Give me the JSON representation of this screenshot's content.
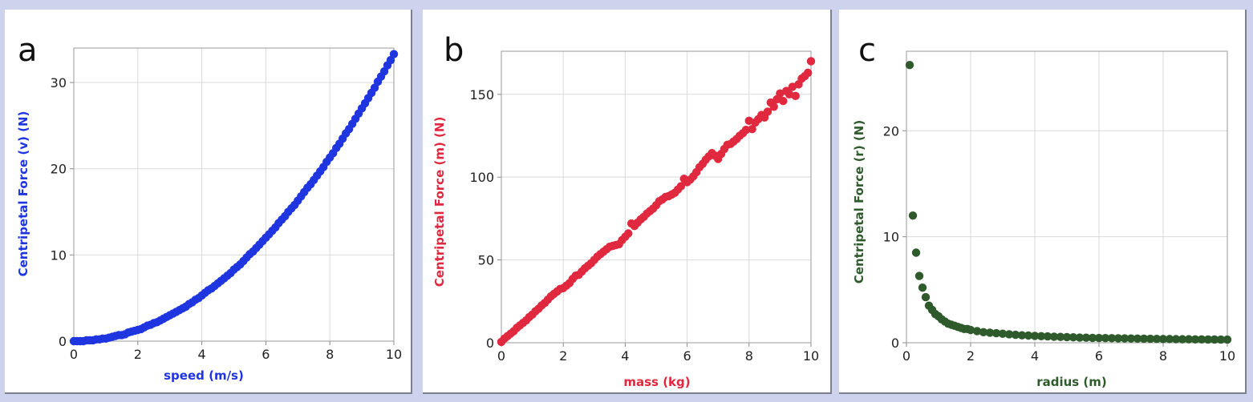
{
  "colors": {
    "background": "#cdd3ec",
    "panel": "#ffffff",
    "grid": "#d9d9d9"
  },
  "chart_data": [
    {
      "type": "scatter",
      "panel_label": "a",
      "xlabel": "speed (m/s)",
      "ylabel": "Centripetal Force (v) (N)",
      "xlim": [
        0,
        10
      ],
      "ylim": [
        0,
        34
      ],
      "xticks": [
        "0",
        "2",
        "4",
        "6",
        "8",
        "10"
      ],
      "yticks": [
        "0",
        "10",
        "20",
        "30"
      ],
      "color": "#1f35e0",
      "series": [
        {
          "x": [
            0.0,
            0.1,
            0.2,
            0.3,
            0.4,
            0.5,
            0.6,
            0.7,
            0.8,
            0.9,
            1.0,
            1.1,
            1.2,
            1.3,
            1.4,
            1.5,
            1.6,
            1.7,
            1.8,
            1.9,
            2.0,
            2.1,
            2.2,
            2.3,
            2.4,
            2.5,
            2.6,
            2.7,
            2.8,
            2.9,
            3.0,
            3.1,
            3.2,
            3.3,
            3.4,
            3.5,
            3.6,
            3.7,
            3.8,
            3.9,
            4.0,
            4.1,
            4.2,
            4.3,
            4.4,
            4.5,
            4.6,
            4.7,
            4.8,
            4.9,
            5.0,
            5.1,
            5.2,
            5.3,
            5.4,
            5.5,
            5.6,
            5.7,
            5.8,
            5.9,
            6.0,
            6.1,
            6.2,
            6.3,
            6.4,
            6.5,
            6.6,
            6.7,
            6.8,
            6.9,
            7.0,
            7.1,
            7.2,
            7.3,
            7.4,
            7.5,
            7.6,
            7.7,
            7.8,
            7.9,
            8.0,
            8.1,
            8.2,
            8.3,
            8.4,
            8.5,
            8.6,
            8.7,
            8.8,
            8.9,
            9.0,
            9.1,
            9.2,
            9.3,
            9.4,
            9.5,
            9.6,
            9.7,
            9.8,
            9.9,
            10.0
          ],
          "y": [
            0.0,
            0.0,
            0.0,
            0.0,
            0.1,
            0.1,
            0.1,
            0.2,
            0.2,
            0.3,
            0.3,
            0.4,
            0.5,
            0.6,
            0.7,
            0.7,
            0.8,
            1.0,
            1.1,
            1.2,
            1.3,
            1.4,
            1.6,
            1.8,
            1.9,
            2.1,
            2.2,
            2.4,
            2.6,
            2.8,
            3.0,
            3.2,
            3.4,
            3.6,
            3.8,
            4.0,
            4.3,
            4.5,
            4.8,
            5.0,
            5.3,
            5.6,
            5.9,
            6.1,
            6.4,
            6.7,
            7.0,
            7.3,
            7.6,
            7.9,
            8.3,
            8.6,
            8.9,
            9.3,
            9.7,
            10.1,
            10.4,
            10.8,
            11.2,
            11.6,
            12.0,
            12.4,
            12.8,
            13.2,
            13.7,
            14.1,
            14.5,
            15.0,
            15.4,
            15.8,
            16.3,
            16.8,
            17.3,
            17.8,
            18.2,
            18.7,
            19.2,
            19.7,
            20.2,
            20.8,
            21.3,
            21.8,
            22.4,
            22.9,
            23.5,
            24.1,
            24.6,
            25.2,
            25.8,
            26.4,
            27.0,
            27.6,
            28.2,
            28.8,
            29.4,
            30.1,
            30.7,
            31.3,
            32.0,
            32.6,
            33.3
          ]
        }
      ]
    },
    {
      "type": "scatter",
      "panel_label": "b",
      "xlabel": "mass (kg)",
      "ylabel": "Centripetal Force (m) (N)",
      "xlim": [
        0,
        10
      ],
      "ylim": [
        0,
        176
      ],
      "xticks": [
        "0",
        "2",
        "4",
        "6",
        "8",
        "10"
      ],
      "yticks": [
        "0",
        "50",
        "100",
        "150"
      ],
      "color": "#e0283f",
      "series": [
        {
          "x": [
            0.0,
            0.1,
            0.2,
            0.3,
            0.4,
            0.5,
            0.6,
            0.7,
            0.8,
            0.9,
            1.0,
            1.1,
            1.2,
            1.3,
            1.4,
            1.5,
            1.6,
            1.7,
            1.8,
            1.9,
            2.0,
            2.1,
            2.2,
            2.3,
            2.4,
            2.5,
            2.6,
            2.7,
            2.8,
            2.9,
            3.0,
            3.1,
            3.2,
            3.3,
            3.4,
            3.5,
            3.6,
            3.7,
            3.8,
            3.9,
            4.0,
            4.1,
            4.2,
            4.3,
            4.4,
            4.5,
            4.6,
            4.7,
            4.8,
            4.9,
            5.0,
            5.1,
            5.2,
            5.3,
            5.4,
            5.5,
            5.6,
            5.7,
            5.8,
            5.9,
            6.0,
            6.1,
            6.2,
            6.3,
            6.4,
            6.5,
            6.6,
            6.7,
            6.8,
            6.9,
            7.0,
            7.1,
            7.2,
            7.3,
            7.4,
            7.5,
            7.6,
            7.7,
            7.8,
            7.9,
            8.0,
            8.1,
            8.2,
            8.3,
            8.4,
            8.5,
            8.6,
            8.7,
            8.8,
            8.9,
            9.0,
            9.1,
            9.2,
            9.3,
            9.4,
            9.5,
            9.6,
            9.7,
            9.8,
            9.9,
            10.0
          ],
          "y": [
            0.5,
            2.5,
            4.0,
            5.5,
            7.0,
            9.0,
            10.5,
            12.0,
            13.5,
            15.5,
            17.0,
            19.0,
            20.5,
            22.5,
            24.0,
            26.0,
            28.0,
            29.5,
            31.0,
            32.5,
            33.0,
            34.5,
            36.0,
            38.5,
            40.5,
            41.0,
            43.0,
            45.0,
            46.5,
            48.0,
            50.0,
            52.0,
            53.5,
            55.0,
            56.5,
            58.0,
            58.5,
            59.0,
            59.5,
            62.0,
            64.0,
            66.0,
            72.0,
            70.5,
            72.5,
            74.5,
            76.0,
            78.0,
            79.5,
            81.0,
            83.0,
            85.5,
            86.5,
            88.0,
            88.5,
            89.5,
            90.5,
            92.5,
            94.5,
            99.0,
            97.0,
            98.5,
            100.5,
            103.0,
            106.0,
            108.0,
            110.5,
            112.5,
            114.5,
            113.0,
            111.0,
            114.0,
            117.0,
            119.5,
            120.0,
            121.5,
            123.0,
            125.0,
            126.5,
            128.5,
            134.0,
            129.0,
            133.0,
            135.0,
            137.5,
            136.0,
            139.5,
            145.0,
            142.5,
            147.0,
            150.5,
            146.0,
            152.0,
            150.0,
            154.5,
            149.0,
            156.0,
            159.5,
            161.0,
            163.0,
            170.0
          ]
        }
      ]
    },
    {
      "type": "scatter",
      "panel_label": "c",
      "xlabel": "radius (m)",
      "ylabel": "Centripetal Force (r) (N)",
      "xlim": [
        0,
        10
      ],
      "ylim": [
        0,
        27.5
      ],
      "xticks": [
        "0",
        "2",
        "4",
        "6",
        "8",
        "10"
      ],
      "yticks": [
        "0",
        "10",
        "20"
      ],
      "color": "#2e5a2c",
      "series": [
        {
          "x": [
            0.1,
            0.2,
            0.3,
            0.4,
            0.5,
            0.6,
            0.7,
            0.8,
            0.9,
            1.0,
            1.1,
            1.2,
            1.3,
            1.4,
            1.5,
            1.6,
            1.7,
            1.8,
            1.9,
            2.0,
            2.2,
            2.4,
            2.6,
            2.8,
            3.0,
            3.2,
            3.4,
            3.6,
            3.8,
            4.0,
            4.2,
            4.4,
            4.6,
            4.8,
            5.0,
            5.2,
            5.4,
            5.6,
            5.8,
            6.0,
            6.2,
            6.4,
            6.6,
            6.8,
            7.0,
            7.2,
            7.4,
            7.6,
            7.8,
            8.0,
            8.2,
            8.4,
            8.6,
            8.8,
            9.0,
            9.2,
            9.4,
            9.6,
            9.8,
            10.0
          ],
          "y": [
            26.2,
            12.0,
            8.5,
            6.3,
            5.2,
            4.3,
            3.5,
            3.1,
            2.7,
            2.5,
            2.2,
            2.0,
            1.8,
            1.7,
            1.6,
            1.5,
            1.4,
            1.3,
            1.3,
            1.2,
            1.1,
            1.0,
            0.95,
            0.9,
            0.85,
            0.8,
            0.75,
            0.7,
            0.68,
            0.65,
            0.62,
            0.6,
            0.57,
            0.55,
            0.53,
            0.51,
            0.49,
            0.48,
            0.46,
            0.45,
            0.44,
            0.43,
            0.42,
            0.41,
            0.4,
            0.39,
            0.38,
            0.37,
            0.36,
            0.35,
            0.35,
            0.34,
            0.33,
            0.33,
            0.32,
            0.32,
            0.31,
            0.31,
            0.3,
            0.3
          ]
        }
      ]
    }
  ]
}
